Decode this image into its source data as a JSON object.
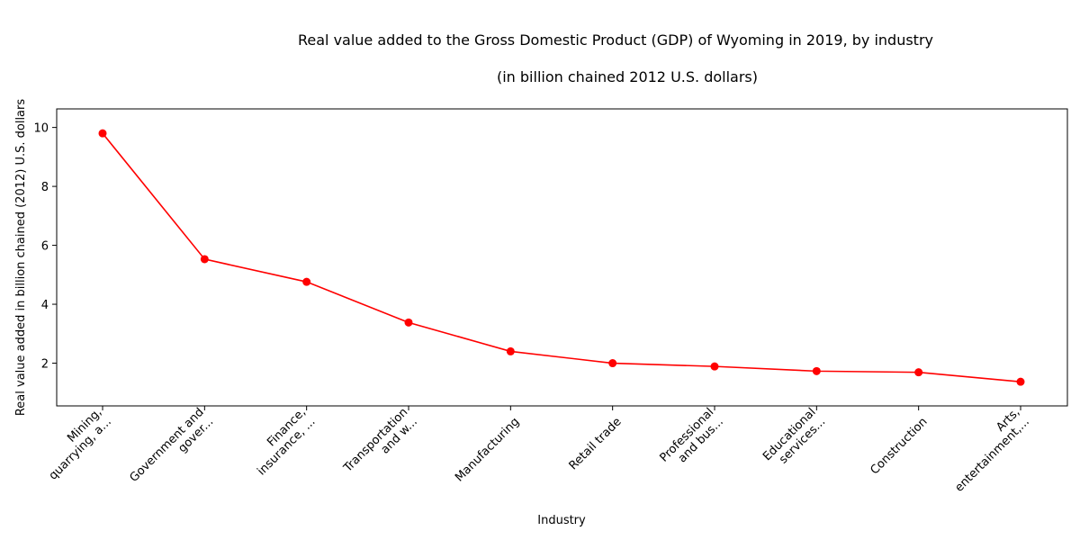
{
  "chart_data": {
    "type": "line",
    "title": "Real value added to the Gross Domestic Product (GDP) of Wyoming in 2019, by industry",
    "subtitle": "(in billion chained 2012 U.S. dollars)",
    "xlabel": "Industry",
    "ylabel": "Real value added in billion chained (2012) U.S. dollars",
    "categories": [
      [
        "Mining,",
        "quarrying, a..."
      ],
      [
        "Government and",
        "gover..."
      ],
      [
        "Finance,",
        "insurance, ..."
      ],
      [
        "Transportation",
        "and w..."
      ],
      [
        "Manufacturing"
      ],
      [
        "Retail trade"
      ],
      [
        "Professional",
        "and bus..."
      ],
      [
        "Educational",
        "services..."
      ],
      [
        "Construction"
      ],
      [
        "Arts,",
        "entertainment,..."
      ]
    ],
    "series": [
      {
        "values": [
          9.8,
          5.53,
          4.76,
          3.38,
          2.4,
          2.0,
          1.89,
          1.73,
          1.69,
          1.37
        ]
      }
    ],
    "yticks": [
      2,
      4,
      6,
      8,
      10
    ],
    "ylim": [
      0.55,
      10.63
    ],
    "grid": false,
    "color": "#ff0000",
    "marker": "circle"
  }
}
